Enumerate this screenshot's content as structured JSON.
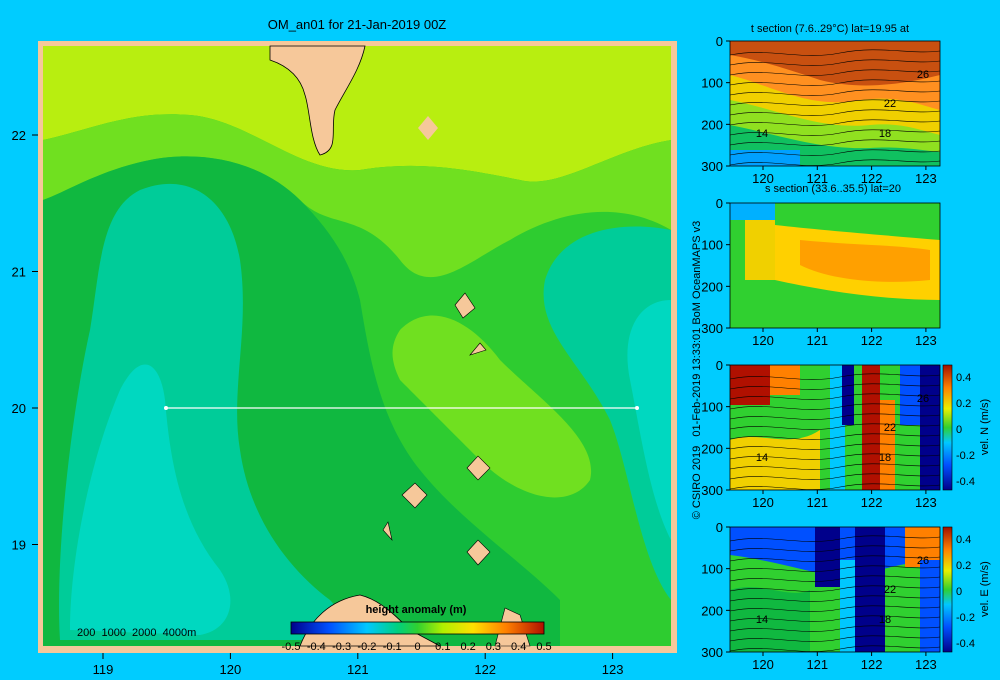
{
  "map": {
    "title": "OM_an01 for 21-Jan-2019 00Z",
    "depth_legend": "200  1000  2000  4000m",
    "colorbar_title": "height anomaly (m)",
    "colorbar_ticks": [
      "-0.5",
      "-0.4",
      "-0.3",
      "-0.2",
      "-0.1",
      "0",
      "0.1",
      "0.2",
      "0.3",
      "0.4",
      "0.5"
    ],
    "x_ticks": [
      "119",
      "120",
      "121",
      "122",
      "123"
    ],
    "y_ticks": [
      "22",
      "21",
      "20",
      "19"
    ],
    "section_line": {
      "lat": 20,
      "lon_start": 119.5,
      "lon_end": 123.2
    }
  },
  "panels": {
    "t_title": "t section (7.6..29°C) lat=19.95 at",
    "s_title": "s section (33.6..35.5) lat=20",
    "v_label": "vel. N (m/s)",
    "u_label": "vel. E (m/s)",
    "x_ticks": [
      "120",
      "121",
      "122",
      "123"
    ],
    "depth_ticks": [
      "0",
      "100",
      "200",
      "300"
    ],
    "vel_ticks": [
      "0.4",
      "0.2",
      "0",
      "-0.2",
      "-0.4"
    ],
    "contour_labels": [
      "26",
      "22",
      "18",
      "14"
    ],
    "t_contour_labels": [
      "26",
      "22",
      "18",
      "14"
    ]
  },
  "credit": "© CSIRO 2019   01-Feb-2019 13:33:01 BoM OceanMAPS v3",
  "chart_data": [
    {
      "type": "heatmap",
      "title": "OM_an01 for 21-Jan-2019 00Z",
      "quantity": "height anomaly (m)",
      "x": [
        119,
        120,
        121,
        122,
        123
      ],
      "y": [
        19,
        20,
        21,
        22
      ],
      "color_range": [
        -0.5,
        0.5
      ],
      "section_lat": 20
    },
    {
      "type": "heatmap",
      "title": "t section (7.6..29°C) lat=19.95 at",
      "x": [
        120,
        121,
        122,
        123
      ],
      "depth": [
        0,
        100,
        200,
        300
      ],
      "contours": [
        26,
        22,
        18,
        14
      ]
    },
    {
      "type": "heatmap",
      "title": "s section (33.6..35.5) lat=20",
      "x": [
        120,
        121,
        122,
        123
      ],
      "depth": [
        0,
        100,
        200,
        300
      ]
    },
    {
      "type": "heatmap",
      "ylabel": "vel. N (m/s)",
      "x": [
        120,
        121,
        122,
        123
      ],
      "depth": [
        0,
        100,
        200,
        300
      ],
      "color_range": [
        -0.4,
        0.4
      ],
      "contours": [
        26,
        22,
        18,
        14
      ]
    },
    {
      "type": "heatmap",
      "ylabel": "vel. E (m/s)",
      "x": [
        120,
        121,
        122,
        123
      ],
      "depth": [
        0,
        100,
        200,
        300
      ],
      "color_range": [
        -0.4,
        0.4
      ],
      "contours": [
        26,
        22,
        18,
        14
      ]
    }
  ]
}
